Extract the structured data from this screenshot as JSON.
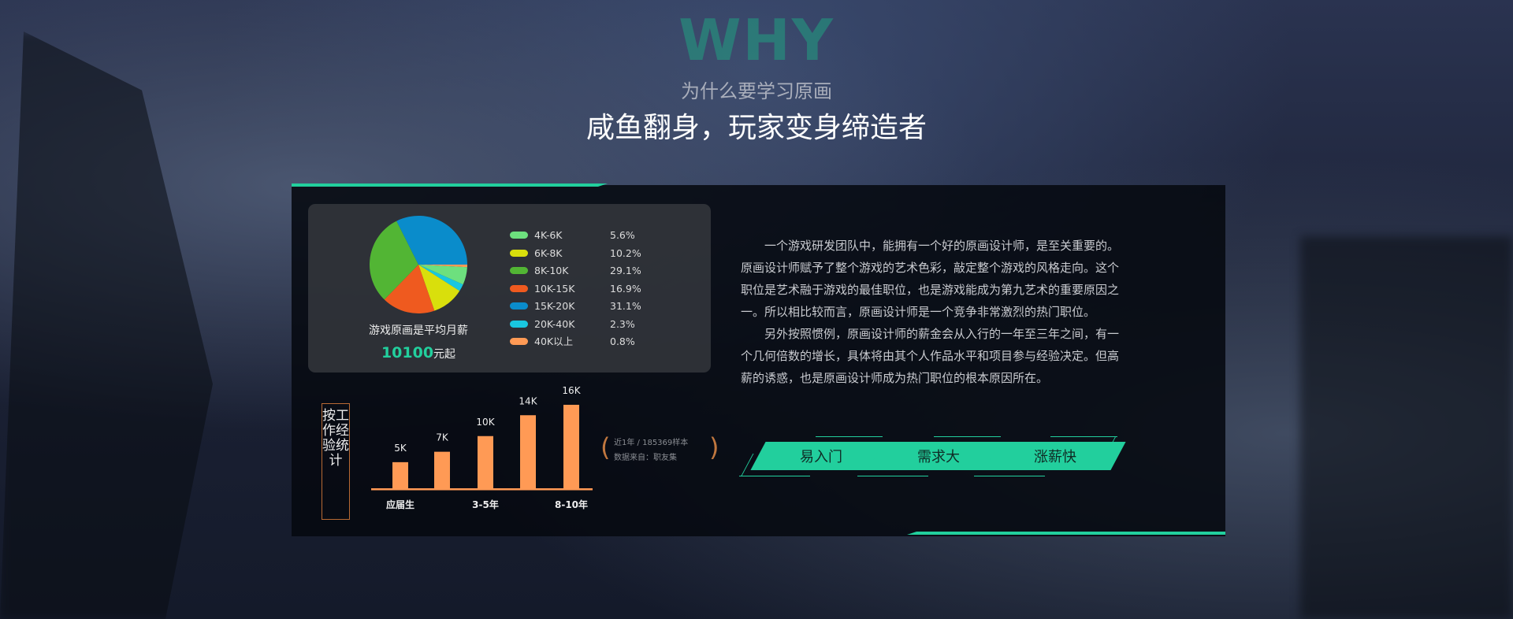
{
  "header": {
    "watermark": "WHY",
    "subtitle": "为什么要学习原画",
    "title": "咸鱼翻身，玩家变身缔造者"
  },
  "salary_card": {
    "caption": "游戏原画是平均月薪",
    "amount": "10100",
    "amount_suffix": "元起",
    "accent": "#22cf9d"
  },
  "chart_data": [
    {
      "type": "pie",
      "series": [
        {
          "label": "4K-6K",
          "value": 5.6,
          "display": "5.6%",
          "color": "#6de07e"
        },
        {
          "label": "6K-8K",
          "value": 10.2,
          "display": "10.2%",
          "color": "#d9df0c"
        },
        {
          "label": "8K-10K",
          "value": 29.1,
          "display": "29.1%",
          "color": "#52b534"
        },
        {
          "label": "10K-15K",
          "value": 16.9,
          "display": "16.9%",
          "color": "#ef5a1f"
        },
        {
          "label": "15K-20K",
          "value": 31.1,
          "display": "31.1%",
          "color": "#0a8ccb"
        },
        {
          "label": "20K-40K",
          "value": 2.3,
          "display": "2.3%",
          "color": "#19c7e0"
        },
        {
          "label": "40K以上",
          "value": 0.8,
          "display": "0.8%",
          "color": "#ff9a55"
        }
      ],
      "draw_order": [
        "40K以上",
        "4K-6K",
        "20K-40K",
        "6K-8K",
        "10K-15K",
        "8K-10K",
        "15K-20K"
      ],
      "legend": "right"
    },
    {
      "type": "bar",
      "title": "按工作经验统计",
      "categories": [
        "应届生",
        "",
        "3-5年",
        "",
        "8-10年"
      ],
      "values": [
        5,
        7,
        10,
        14,
        16
      ],
      "data_labels": [
        "5K",
        "7K",
        "10K",
        "14K",
        "16K"
      ],
      "ylim": [
        0,
        16
      ],
      "color": "#ff9a55"
    }
  ],
  "source_note": {
    "line1": "近1年 / 185369样本",
    "line2": "数据来自：职友集",
    "paren_open": "(",
    "paren_close": ")"
  },
  "paragraphs": [
    "一个游戏研发团队中，能拥有一个好的原画设计师，是至关重要的。原画设计师赋予了整个游戏的艺术色彩，敲定整个游戏的风格走向。这个职位是艺术融于游戏的最佳职位，也是游戏能成为第九艺术的重要原因之一。所以相比较而言，原画设计师是一个竞争非常激烈的热门职位。",
    "另外按照惯例，原画设计师的薪金会从入行的一年至三年之间，有一个几何倍数的增长，具体将由其个人作品水平和项目参与经验决定。但高薪的诱惑，也是原画设计师成为热门职位的根本原因所在。"
  ],
  "buttons": [
    "易入门",
    "需求大",
    "涨薪快"
  ]
}
